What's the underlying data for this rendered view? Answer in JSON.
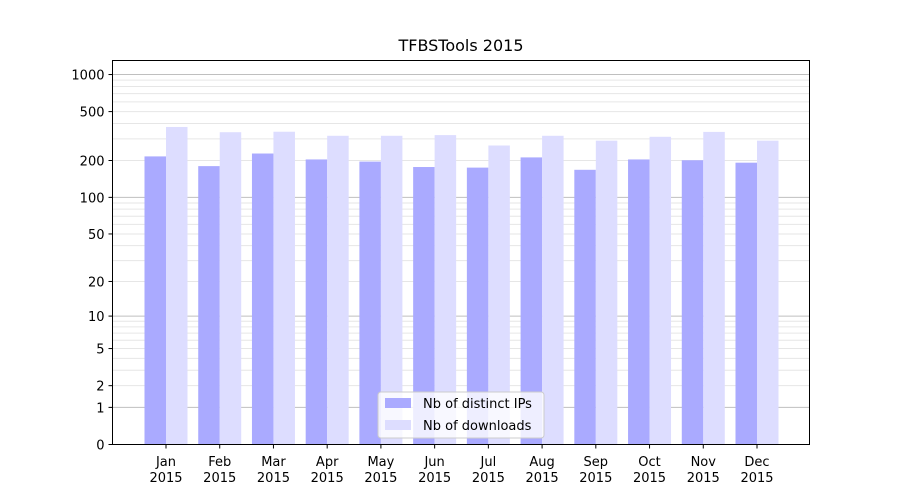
{
  "chart_data": {
    "type": "bar",
    "title": "TFBSTools 2015",
    "xlabel": "",
    "ylabel": "",
    "y_scale": "log(1+y)",
    "ylim": [
      0,
      1300
    ],
    "yticks": [
      0,
      1,
      2,
      5,
      10,
      20,
      50,
      100,
      200,
      500,
      1000
    ],
    "categories": [
      [
        "Jan",
        "2015"
      ],
      [
        "Feb",
        "2015"
      ],
      [
        "Mar",
        "2015"
      ],
      [
        "Apr",
        "2015"
      ],
      [
        "May",
        "2015"
      ],
      [
        "Jun",
        "2015"
      ],
      [
        "Jul",
        "2015"
      ],
      [
        "Aug",
        "2015"
      ],
      [
        "Sep",
        "2015"
      ],
      [
        "Oct",
        "2015"
      ],
      [
        "Nov",
        "2015"
      ],
      [
        "Dec",
        "2015"
      ]
    ],
    "series": [
      {
        "name": "Nb of distinct IPs",
        "color": "#aaaaff",
        "values": [
          216,
          180,
          228,
          204,
          196,
          177,
          175,
          212,
          168,
          204,
          201,
          192
        ]
      },
      {
        "name": "Nb of downloads",
        "color": "#ddddff",
        "values": [
          375,
          340,
          343,
          318,
          318,
          322,
          265,
          318,
          290,
          312,
          342,
          290
        ]
      }
    ],
    "legend_position": "lower-center",
    "grid": true
  }
}
